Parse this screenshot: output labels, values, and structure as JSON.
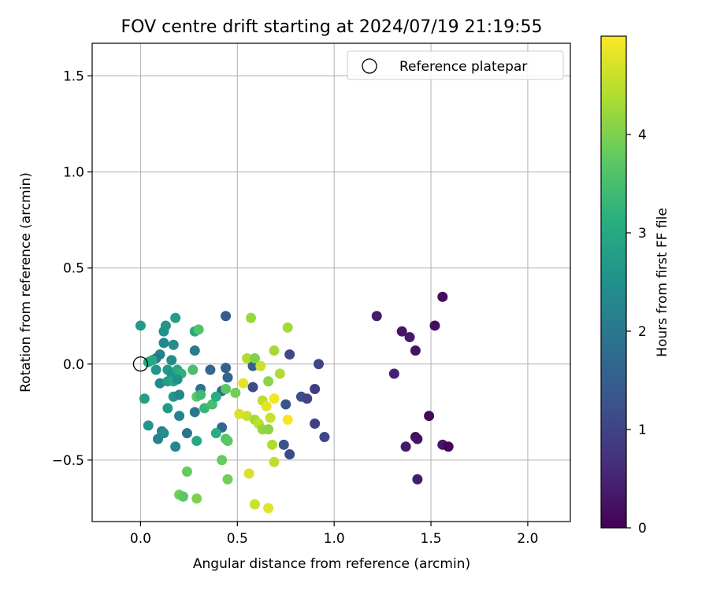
{
  "chart_data": {
    "type": "scatter",
    "title": "FOV centre drift starting at 2024/07/19 21:19:55",
    "xlabel": "Angular distance from reference (arcmin)",
    "ylabel": "Rotation from reference (arcmin)",
    "xlim": [
      -0.25,
      2.22
    ],
    "ylim": [
      -0.82,
      1.67
    ],
    "xticks": [
      "0.0",
      "0.5",
      "1.0",
      "1.5",
      "2.0"
    ],
    "xtick_values": [
      0.0,
      0.5,
      1.0,
      1.5,
      2.0
    ],
    "yticks": [
      "−0.5",
      "0.0",
      "0.5",
      "1.0",
      "1.5"
    ],
    "ytick_values": [
      -0.5,
      0.0,
      0.5,
      1.0,
      1.5
    ],
    "grid": true,
    "legend": {
      "position": "top-right",
      "entries": [
        "Reference platepar"
      ]
    },
    "reference_point": {
      "x": 0.0,
      "y": 0.0,
      "marker": "open-circle",
      "edge_color": "#000000"
    },
    "colorbar": {
      "label": "Hours from first FF file",
      "colormap": "viridis",
      "range": [
        0,
        5
      ],
      "ticks": [
        "0",
        "1",
        "2",
        "3",
        "4"
      ],
      "tick_values": [
        0,
        1,
        2,
        3,
        4
      ]
    },
    "points": [
      {
        "x": 1.56,
        "y": 0.35,
        "c": 0.15
      },
      {
        "x": 1.22,
        "y": 0.25,
        "c": 0.4
      },
      {
        "x": 1.35,
        "y": 0.17,
        "c": 0.3
      },
      {
        "x": 1.52,
        "y": 0.2,
        "c": 0.2
      },
      {
        "x": 1.39,
        "y": 0.14,
        "c": 0.35
      },
      {
        "x": 1.42,
        "y": 0.07,
        "c": 0.25
      },
      {
        "x": 1.31,
        "y": -0.05,
        "c": 0.45
      },
      {
        "x": 1.49,
        "y": -0.27,
        "c": 0.1
      },
      {
        "x": 1.42,
        "y": -0.38,
        "c": 0.2
      },
      {
        "x": 1.43,
        "y": -0.39,
        "c": 0.25
      },
      {
        "x": 1.37,
        "y": -0.43,
        "c": 0.35
      },
      {
        "x": 1.56,
        "y": -0.42,
        "c": 0.3
      },
      {
        "x": 1.59,
        "y": -0.43,
        "c": 0.05
      },
      {
        "x": 1.43,
        "y": -0.6,
        "c": 0.4
      },
      {
        "x": 0.92,
        "y": 0.0,
        "c": 1.0
      },
      {
        "x": 0.77,
        "y": 0.05,
        "c": 1.1
      },
      {
        "x": 0.9,
        "y": -0.13,
        "c": 0.9
      },
      {
        "x": 0.83,
        "y": -0.17,
        "c": 1.2
      },
      {
        "x": 0.86,
        "y": -0.18,
        "c": 1.0
      },
      {
        "x": 0.75,
        "y": -0.21,
        "c": 1.3
      },
      {
        "x": 0.9,
        "y": -0.31,
        "c": 0.95
      },
      {
        "x": 0.95,
        "y": -0.38,
        "c": 1.05
      },
      {
        "x": 0.77,
        "y": -0.47,
        "c": 1.15
      },
      {
        "x": 0.74,
        "y": -0.42,
        "c": 1.3
      },
      {
        "x": 0.58,
        "y": -0.12,
        "c": 1.1
      },
      {
        "x": 0.58,
        "y": -0.01,
        "c": 1.5
      },
      {
        "x": 0.44,
        "y": 0.25,
        "c": 1.4
      },
      {
        "x": 0.44,
        "y": -0.02,
        "c": 1.5
      },
      {
        "x": 0.45,
        "y": -0.07,
        "c": 1.6
      },
      {
        "x": 0.36,
        "y": -0.03,
        "c": 1.7
      },
      {
        "x": 0.31,
        "y": -0.13,
        "c": 1.8
      },
      {
        "x": 0.42,
        "y": -0.14,
        "c": 1.6
      },
      {
        "x": 0.42,
        "y": -0.33,
        "c": 1.7
      },
      {
        "x": 0.24,
        "y": -0.36,
        "c": 1.9
      },
      {
        "x": 0.28,
        "y": 0.07,
        "c": 2.1
      },
      {
        "x": 0.28,
        "y": -0.25,
        "c": 2.0
      },
      {
        "x": 0.2,
        "y": -0.27,
        "c": 2.2
      },
      {
        "x": 0.18,
        "y": -0.43,
        "c": 2.3
      },
      {
        "x": 0.09,
        "y": -0.39,
        "c": 2.2
      },
      {
        "x": 0.11,
        "y": -0.35,
        "c": 2.1
      },
      {
        "x": 0.12,
        "y": -0.36,
        "c": 2.4
      },
      {
        "x": 0.04,
        "y": -0.32,
        "c": 2.6
      },
      {
        "x": 0.02,
        "y": -0.18,
        "c": 2.8
      },
      {
        "x": 0.0,
        "y": 0.2,
        "c": 2.7
      },
      {
        "x": 0.13,
        "y": 0.2,
        "c": 2.6
      },
      {
        "x": 0.12,
        "y": 0.17,
        "c": 2.5
      },
      {
        "x": 0.18,
        "y": 0.24,
        "c": 2.8
      },
      {
        "x": 0.12,
        "y": 0.11,
        "c": 2.3
      },
      {
        "x": 0.17,
        "y": 0.1,
        "c": 2.4
      },
      {
        "x": 0.1,
        "y": 0.05,
        "c": 2.2
      },
      {
        "x": 0.08,
        "y": 0.03,
        "c": 2.0
      },
      {
        "x": 0.04,
        "y": 0.01,
        "c": 2.9
      },
      {
        "x": 0.06,
        "y": 0.02,
        "c": 3.0
      },
      {
        "x": 0.08,
        "y": -0.03,
        "c": 2.6
      },
      {
        "x": 0.16,
        "y": 0.02,
        "c": 2.4
      },
      {
        "x": 0.14,
        "y": -0.03,
        "c": 2.7
      },
      {
        "x": 0.16,
        "y": -0.05,
        "c": 2.5
      },
      {
        "x": 0.19,
        "y": -0.03,
        "c": 3.0
      },
      {
        "x": 0.21,
        "y": -0.05,
        "c": 3.2
      },
      {
        "x": 0.1,
        "y": -0.1,
        "c": 2.3
      },
      {
        "x": 0.14,
        "y": -0.09,
        "c": 2.8
      },
      {
        "x": 0.17,
        "y": -0.09,
        "c": 3.0
      },
      {
        "x": 0.19,
        "y": -0.08,
        "c": 2.5
      },
      {
        "x": 0.17,
        "y": -0.17,
        "c": 2.6
      },
      {
        "x": 0.2,
        "y": -0.16,
        "c": 2.3
      },
      {
        "x": 0.14,
        "y": -0.23,
        "c": 2.7
      },
      {
        "x": 0.28,
        "y": 0.17,
        "c": 3.0
      },
      {
        "x": 0.3,
        "y": 0.18,
        "c": 3.6
      },
      {
        "x": 0.27,
        "y": -0.03,
        "c": 3.5
      },
      {
        "x": 0.29,
        "y": -0.17,
        "c": 3.7
      },
      {
        "x": 0.31,
        "y": -0.16,
        "c": 3.4
      },
      {
        "x": 0.33,
        "y": -0.23,
        "c": 3.3
      },
      {
        "x": 0.37,
        "y": -0.21,
        "c": 3.5
      },
      {
        "x": 0.39,
        "y": -0.17,
        "c": 3.1
      },
      {
        "x": 0.29,
        "y": -0.4,
        "c": 3.0
      },
      {
        "x": 0.39,
        "y": -0.36,
        "c": 3.1
      },
      {
        "x": 0.44,
        "y": -0.39,
        "c": 3.6
      },
      {
        "x": 0.45,
        "y": -0.4,
        "c": 3.7
      },
      {
        "x": 0.42,
        "y": -0.5,
        "c": 3.8
      },
      {
        "x": 0.44,
        "y": -0.13,
        "c": 3.7
      },
      {
        "x": 0.49,
        "y": -0.15,
        "c": 3.9
      },
      {
        "x": 0.24,
        "y": -0.56,
        "c": 3.8
      },
      {
        "x": 0.45,
        "y": -0.6,
        "c": 3.9
      },
      {
        "x": 0.2,
        "y": -0.68,
        "c": 3.9
      },
      {
        "x": 0.22,
        "y": -0.69,
        "c": 3.7
      },
      {
        "x": 0.29,
        "y": -0.7,
        "c": 4.0
      },
      {
        "x": 0.57,
        "y": 0.24,
        "c": 4.2
      },
      {
        "x": 0.76,
        "y": 0.19,
        "c": 4.3
      },
      {
        "x": 0.69,
        "y": 0.07,
        "c": 4.3
      },
      {
        "x": 0.55,
        "y": 0.03,
        "c": 4.4
      },
      {
        "x": 0.59,
        "y": 0.03,
        "c": 4.0
      },
      {
        "x": 0.62,
        "y": -0.01,
        "c": 4.6
      },
      {
        "x": 0.72,
        "y": -0.05,
        "c": 4.4
      },
      {
        "x": 0.53,
        "y": -0.1,
        "c": 4.8
      },
      {
        "x": 0.66,
        "y": -0.09,
        "c": 4.1
      },
      {
        "x": 0.63,
        "y": -0.19,
        "c": 4.5
      },
      {
        "x": 0.69,
        "y": -0.18,
        "c": 4.9
      },
      {
        "x": 0.65,
        "y": -0.22,
        "c": 4.8
      },
      {
        "x": 0.51,
        "y": -0.26,
        "c": 4.7
      },
      {
        "x": 0.55,
        "y": -0.27,
        "c": 4.6
      },
      {
        "x": 0.59,
        "y": -0.29,
        "c": 4.3
      },
      {
        "x": 0.61,
        "y": -0.31,
        "c": 4.5
      },
      {
        "x": 0.63,
        "y": -0.34,
        "c": 4.2
      },
      {
        "x": 0.66,
        "y": -0.34,
        "c": 4.1
      },
      {
        "x": 0.67,
        "y": -0.28,
        "c": 4.6
      },
      {
        "x": 0.76,
        "y": -0.29,
        "c": 4.95
      },
      {
        "x": 0.68,
        "y": -0.42,
        "c": 4.4
      },
      {
        "x": 0.69,
        "y": -0.51,
        "c": 4.5
      },
      {
        "x": 0.56,
        "y": -0.57,
        "c": 4.7
      },
      {
        "x": 0.59,
        "y": -0.73,
        "c": 4.6
      },
      {
        "x": 0.66,
        "y": -0.75,
        "c": 4.8
      }
    ]
  }
}
